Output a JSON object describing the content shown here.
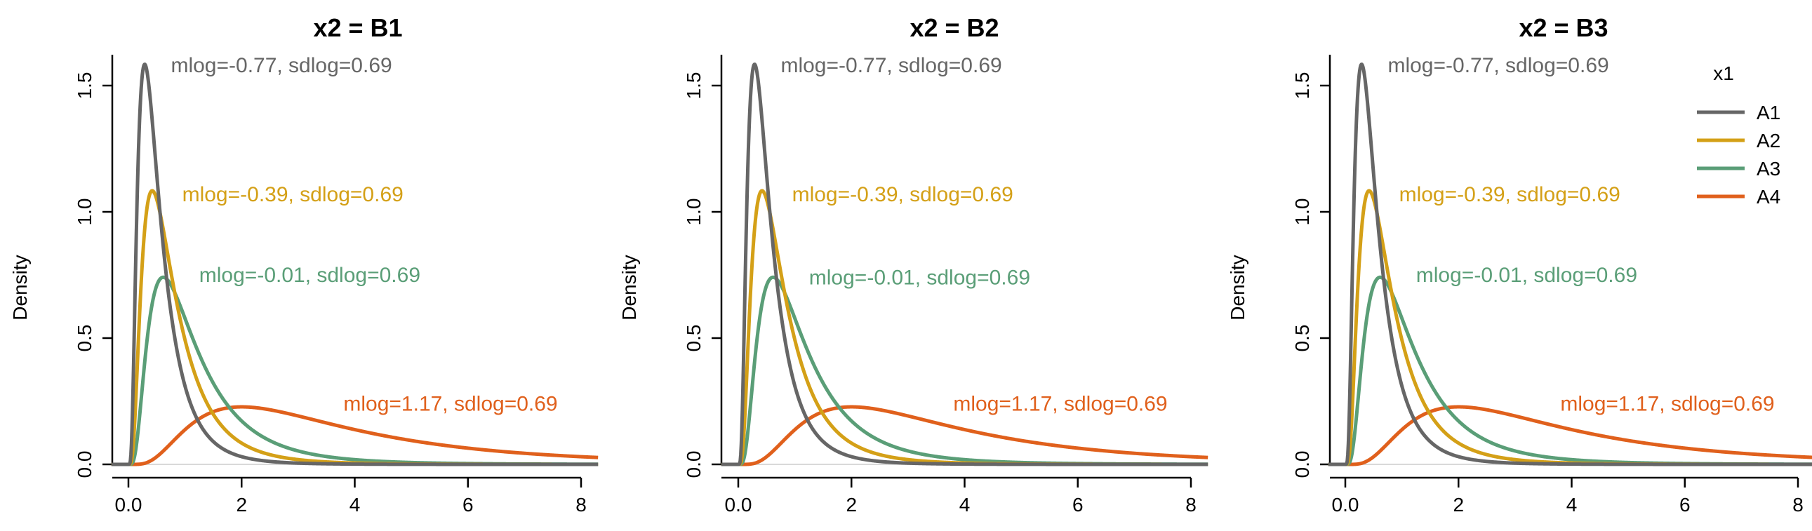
{
  "chart_data": [
    {
      "type": "line",
      "title": "x2 = B1",
      "xlabel": "",
      "ylabel": "Density",
      "xlim": [
        -0.3,
        8.3
      ],
      "ylim": [
        0,
        1.7
      ],
      "xticks": [
        0,
        2,
        4,
        6,
        8
      ],
      "yticks": [
        0.0,
        0.5,
        1.0,
        1.5
      ],
      "grid": false,
      "series": [
        {
          "name": "A1",
          "distribution": "lognormal",
          "meanlog": -0.77,
          "sdlog": 0.69,
          "color": "#666666"
        },
        {
          "name": "A2",
          "distribution": "lognormal",
          "meanlog": -0.39,
          "sdlog": 0.69,
          "color": "#D4A017"
        },
        {
          "name": "A3",
          "distribution": "lognormal",
          "meanlog": -0.01,
          "sdlog": 0.69,
          "color": "#5A9E77"
        },
        {
          "name": "A4",
          "distribution": "lognormal",
          "meanlog": 1.17,
          "sdlog": 0.69,
          "color": "#E0601C"
        }
      ],
      "annotations": [
        {
          "text": "mlog=-0.77, sdlog=0.69",
          "x": 0.75,
          "y": 1.58,
          "color": "#666666"
        },
        {
          "text": "mlog=-0.39, sdlog=0.69",
          "x": 0.95,
          "y": 1.07,
          "color": "#D4A017"
        },
        {
          "text": "mlog=-0.01, sdlog=0.69",
          "x": 1.25,
          "y": 0.75,
          "color": "#5A9E77"
        },
        {
          "text": "mlog=1.17, sdlog=0.69",
          "x": 3.8,
          "y": 0.24,
          "color": "#E0601C"
        }
      ]
    },
    {
      "type": "line",
      "title": "x2 = B2",
      "xlabel": "",
      "ylabel": "Density",
      "xlim": [
        -0.3,
        8.3
      ],
      "ylim": [
        0,
        1.7
      ],
      "xticks": [
        0,
        2,
        4,
        6,
        8
      ],
      "yticks": [
        0.0,
        0.5,
        1.0,
        1.5
      ],
      "grid": false,
      "series": [
        {
          "name": "A1",
          "distribution": "lognormal",
          "meanlog": -0.77,
          "sdlog": 0.69,
          "color": "#666666"
        },
        {
          "name": "A2",
          "distribution": "lognormal",
          "meanlog": -0.39,
          "sdlog": 0.69,
          "color": "#D4A017"
        },
        {
          "name": "A3",
          "distribution": "lognormal",
          "meanlog": -0.01,
          "sdlog": 0.69,
          "color": "#5A9E77"
        },
        {
          "name": "A4",
          "distribution": "lognormal",
          "meanlog": 1.17,
          "sdlog": 0.69,
          "color": "#E0601C"
        }
      ],
      "annotations": [
        {
          "text": "mlog=-0.77, sdlog=0.69",
          "x": 0.75,
          "y": 1.58,
          "color": "#666666"
        },
        {
          "text": "mlog=-0.39, sdlog=0.69",
          "x": 0.95,
          "y": 1.07,
          "color": "#D4A017"
        },
        {
          "text": "mlog=-0.01, sdlog=0.69",
          "x": 1.25,
          "y": 0.74,
          "color": "#5A9E77"
        },
        {
          "text": "mlog=1.17, sdlog=0.69",
          "x": 3.8,
          "y": 0.24,
          "color": "#E0601C"
        }
      ]
    },
    {
      "type": "line",
      "title": "x2 = B3",
      "xlabel": "",
      "ylabel": "Density",
      "xlim": [
        -0.3,
        8.3
      ],
      "ylim": [
        0,
        1.7
      ],
      "xticks": [
        0,
        2,
        4,
        6,
        8
      ],
      "yticks": [
        0.0,
        0.5,
        1.0,
        1.5
      ],
      "grid": false,
      "legend": {
        "title": "x1",
        "position": "top-right",
        "entries": [
          "A1",
          "A2",
          "A3",
          "A4"
        ]
      },
      "series": [
        {
          "name": "A1",
          "distribution": "lognormal",
          "meanlog": -0.77,
          "sdlog": 0.69,
          "color": "#666666"
        },
        {
          "name": "A2",
          "distribution": "lognormal",
          "meanlog": -0.39,
          "sdlog": 0.69,
          "color": "#D4A017"
        },
        {
          "name": "A3",
          "distribution": "lognormal",
          "meanlog": -0.01,
          "sdlog": 0.69,
          "color": "#5A9E77"
        },
        {
          "name": "A4",
          "distribution": "lognormal",
          "meanlog": 1.17,
          "sdlog": 0.69,
          "color": "#E0601C"
        }
      ],
      "annotations": [
        {
          "text": "mlog=-0.77, sdlog=0.69",
          "x": 0.75,
          "y": 1.58,
          "color": "#666666"
        },
        {
          "text": "mlog=-0.39, sdlog=0.69",
          "x": 0.95,
          "y": 1.07,
          "color": "#D4A017"
        },
        {
          "text": "mlog=-0.01, sdlog=0.69",
          "x": 1.25,
          "y": 0.75,
          "color": "#5A9E77"
        },
        {
          "text": "mlog=1.17, sdlog=0.69",
          "x": 3.8,
          "y": 0.24,
          "color": "#E0601C"
        }
      ]
    }
  ]
}
